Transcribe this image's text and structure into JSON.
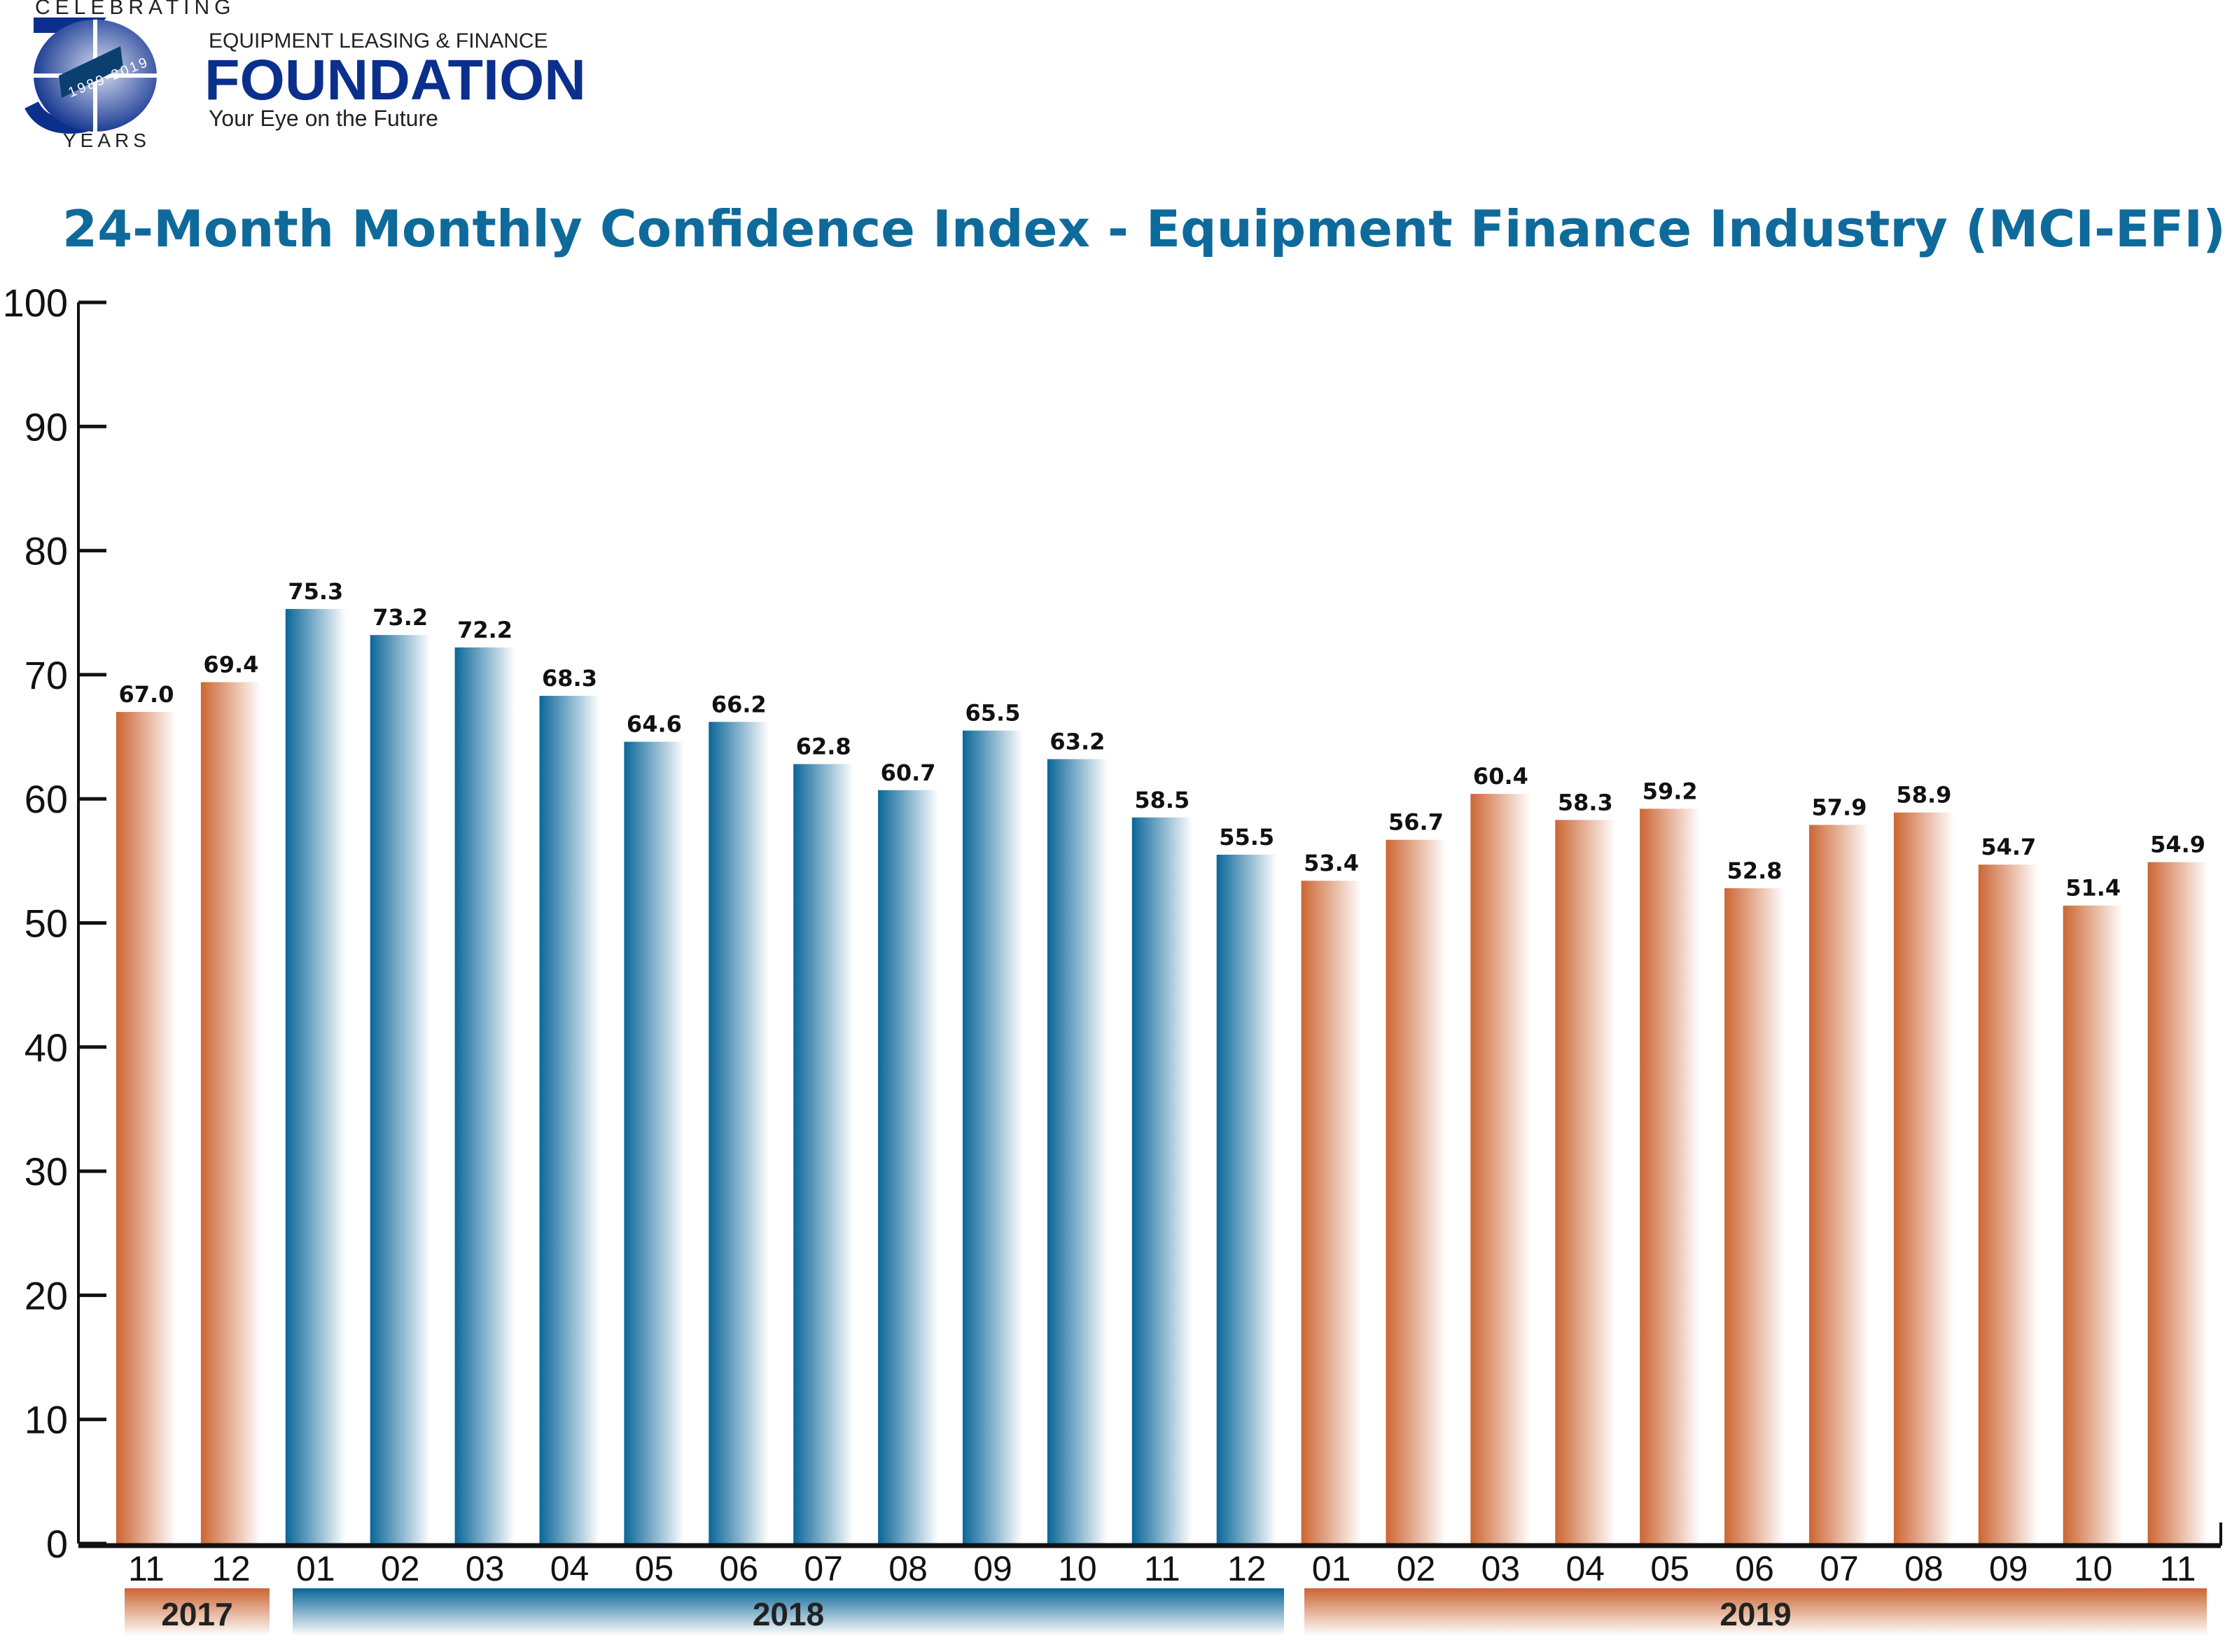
{
  "logo": {
    "top": "CELEBRATING",
    "number": "30",
    "ribbon": "1989-2019",
    "bottom": "YEARS",
    "org_line": "EQUIPMENT LEASING & FINANCE",
    "org_name": "FOUNDATION",
    "tagline": "Your Eye on the Future",
    "color": "#0b2f8c"
  },
  "chart_data": {
    "type": "bar",
    "title": "24-Month Monthly Confidence Index - Equipment Finance Industry (MCI-EFI)",
    "xlabel": "",
    "ylabel": "",
    "ylim": [
      0,
      100
    ],
    "yticks": [
      0,
      10,
      20,
      30,
      40,
      50,
      60,
      70,
      80,
      90,
      100
    ],
    "grid": false,
    "categories": [
      "11",
      "12",
      "01",
      "02",
      "03",
      "04",
      "05",
      "06",
      "07",
      "08",
      "09",
      "10",
      "11",
      "12",
      "01",
      "02",
      "03",
      "04",
      "05",
      "06",
      "07",
      "08",
      "09",
      "10",
      "11"
    ],
    "years": [
      "2017",
      "2017",
      "2018",
      "2018",
      "2018",
      "2018",
      "2018",
      "2018",
      "2018",
      "2018",
      "2018",
      "2018",
      "2018",
      "2018",
      "2019",
      "2019",
      "2019",
      "2019",
      "2019",
      "2019",
      "2019",
      "2019",
      "2019",
      "2019",
      "2019"
    ],
    "values": [
      67.0,
      69.4,
      75.3,
      73.2,
      72.2,
      68.3,
      64.6,
      66.2,
      62.8,
      60.7,
      65.5,
      63.2,
      58.5,
      55.5,
      53.4,
      56.7,
      60.4,
      58.3,
      59.2,
      52.8,
      57.9,
      58.9,
      54.7,
      51.4,
      54.9
    ],
    "value_labels": [
      "67.0",
      "69.4",
      "75.3",
      "73.2",
      "72.2",
      "68.3",
      "64.6",
      "66.2",
      "62.8",
      "60.7",
      "65.5",
      "63.2",
      "58.5",
      "55.5",
      "53.4",
      "56.7",
      "60.4",
      "58.3",
      "59.2",
      "52.8",
      "57.9",
      "58.9",
      "54.7",
      "51.4",
      "54.9"
    ],
    "year_groups": [
      {
        "label": "2017",
        "color": "#cc6633"
      },
      {
        "label": "2018",
        "color": "#0a6699"
      },
      {
        "label": "2019",
        "color": "#cc6633"
      }
    ],
    "title_color": "#0f6a9c"
  }
}
